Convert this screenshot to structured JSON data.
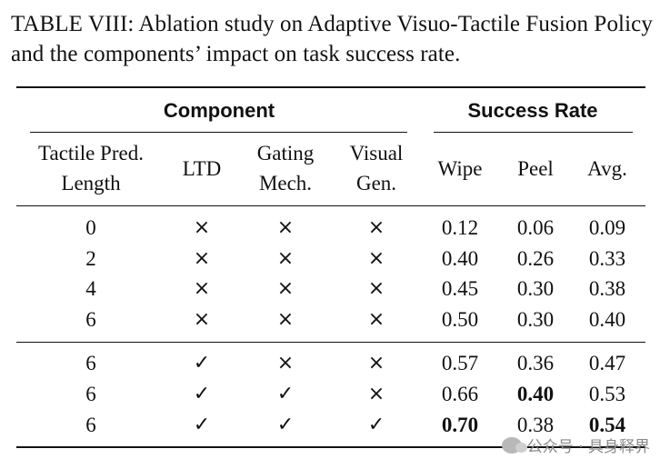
{
  "caption": "TABLE VIII: Ablation study on Adaptive Visuo-Tactile Fusion Policy and the components’ impact on task success rate.",
  "headers": {
    "group_component": "Component",
    "group_success": "Success Rate",
    "col1_line1": "Tactile Pred.",
    "col1_line2": "Length",
    "col2": "LTD",
    "col3_line1": "Gating",
    "col3_line2": "Mech.",
    "col4_line1": "Visual",
    "col4_line2": "Gen.",
    "col5": "Wipe",
    "col6": "Peel",
    "col7": "Avg."
  },
  "marks": {
    "yes": "✓",
    "no": "×"
  },
  "rows": [
    {
      "length": "0",
      "ltd": "×",
      "gating": "×",
      "visual": "×",
      "wipe": "0.12",
      "peel": "0.06",
      "avg": "0.09"
    },
    {
      "length": "2",
      "ltd": "×",
      "gating": "×",
      "visual": "×",
      "wipe": "0.40",
      "peel": "0.26",
      "avg": "0.33"
    },
    {
      "length": "4",
      "ltd": "×",
      "gating": "×",
      "visual": "×",
      "wipe": "0.45",
      "peel": "0.30",
      "avg": "0.38"
    },
    {
      "length": "6",
      "ltd": "×",
      "gating": "×",
      "visual": "×",
      "wipe": "0.50",
      "peel": "0.30",
      "avg": "0.40"
    },
    {
      "length": "6",
      "ltd": "✓",
      "gating": "×",
      "visual": "×",
      "wipe": "0.57",
      "peel": "0.36",
      "avg": "0.47"
    },
    {
      "length": "6",
      "ltd": "✓",
      "gating": "✓",
      "visual": "×",
      "wipe": "0.66",
      "peel": "0.40",
      "avg": "0.53"
    },
    {
      "length": "6",
      "ltd": "✓",
      "gating": "✓",
      "visual": "✓",
      "wipe": "0.70",
      "peel": "0.38",
      "avg": "0.54"
    }
  ],
  "bold_cells": [
    "rows.5.peel",
    "rows.6.wipe",
    "rows.6.avg"
  ],
  "watermark": "公众号 · 具身释界"
}
